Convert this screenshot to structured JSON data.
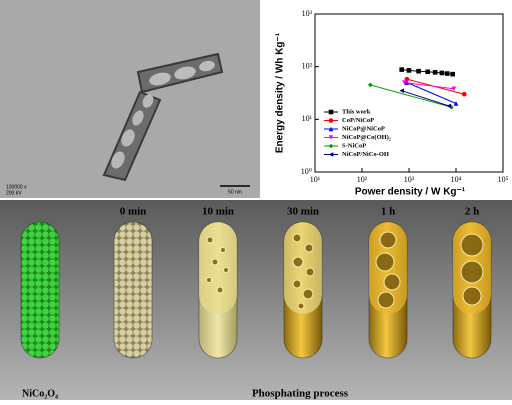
{
  "tem": {
    "magnification": "100000 x",
    "voltage": "200 kV",
    "scale_bar": "50 nm"
  },
  "chart_data": {
    "type": "line",
    "xlabel": "Power density / W Kg⁻¹",
    "ylabel": "Energy density / Wh Kg⁻¹",
    "log_x": true,
    "log_y": true,
    "xlim": [
      10,
      100000
    ],
    "ylim": [
      1,
      1000
    ],
    "xticks": [
      {
        "value": 10,
        "label": "10¹"
      },
      {
        "value": 100,
        "label": "10²"
      },
      {
        "value": 1000,
        "label": "10³"
      },
      {
        "value": 10000,
        "label": "10⁴"
      },
      {
        "value": 100000,
        "label": "10⁵"
      }
    ],
    "yticks": [
      {
        "value": 1,
        "label": "10⁰"
      },
      {
        "value": 10,
        "label": "10¹"
      },
      {
        "value": 100,
        "label": "10²"
      },
      {
        "value": 1000,
        "label": "10³"
      }
    ],
    "legend": "center-left",
    "series": [
      {
        "name": "This work",
        "color": "#000000",
        "marker": "square",
        "x": [
          700,
          1000,
          1600,
          2500,
          3600,
          5000,
          6500,
          8500
        ],
        "values": [
          88,
          85,
          82,
          80,
          78,
          76,
          74,
          72
        ]
      },
      {
        "name": "CoP/NiCoP",
        "color": "#ff0000",
        "marker": "circle",
        "x": [
          900,
          15000
        ],
        "values": [
          58,
          30
        ]
      },
      {
        "name": "NiCoP@NiCoP",
        "color": "#0000ff",
        "marker": "triangle",
        "x": [
          900,
          10000
        ],
        "values": [
          50,
          20
        ]
      },
      {
        "name": "NiCoP@Co(OH)₂",
        "color": "#ff00ff",
        "marker": "triangle-down",
        "x": [
          800,
          9000
        ],
        "values": [
          50,
          38
        ]
      },
      {
        "name": "S-NiCoP",
        "color": "#009900",
        "marker": "diamond",
        "x": [
          150,
          8000
        ],
        "values": [
          45,
          17
        ]
      },
      {
        "name": "NiCoP/NiCo-OH",
        "color": "#000080",
        "marker": "triangle-left",
        "x": [
          700,
          7000
        ],
        "values": [
          35,
          18
        ]
      }
    ]
  },
  "schematic": {
    "stages": [
      "0 min",
      "10 min",
      "30 min",
      "1 h",
      "2 h"
    ],
    "precursor": "NiCo₂O₄",
    "caption": "Phosphating process"
  }
}
